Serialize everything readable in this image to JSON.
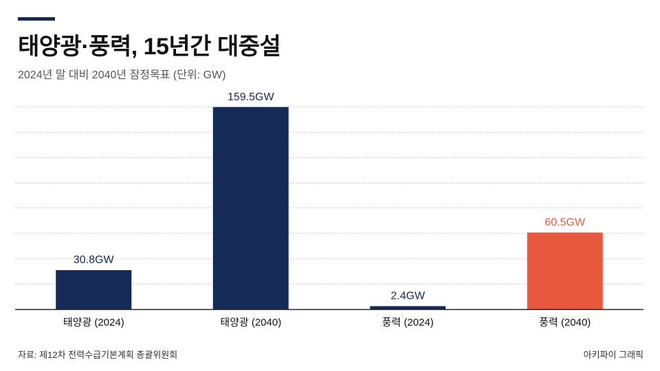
{
  "header": {
    "title": "태양광·풍력, 15년간 대중설",
    "subtitle": "2024년 말 대비 2040년 잠정목표 (단위: GW)"
  },
  "footer": {
    "source": "자료: 제12차 전력수급기본계획 총괄위원회",
    "brand": "아키파이 그래픽"
  },
  "colors": {
    "accent": "#152a56",
    "bar_primary": "#152a56",
    "bar_highlight": "#e8583f",
    "grid": "#cccccc",
    "baseline": "#222222"
  },
  "chart_data": {
    "type": "bar",
    "categories": [
      "태양광 (2024)",
      "태양광 (2040)",
      "풍력 (2024)",
      "풍력 (2040)"
    ],
    "values": [
      30.8,
      159.5,
      2.4,
      60.5
    ],
    "data_labels": [
      "30.8GW",
      "159.5GW",
      "2.4GW",
      "60.5GW"
    ],
    "highlight_index": 3,
    "ylim": [
      0,
      180
    ],
    "grid": true,
    "xlabel": "",
    "ylabel": ""
  }
}
